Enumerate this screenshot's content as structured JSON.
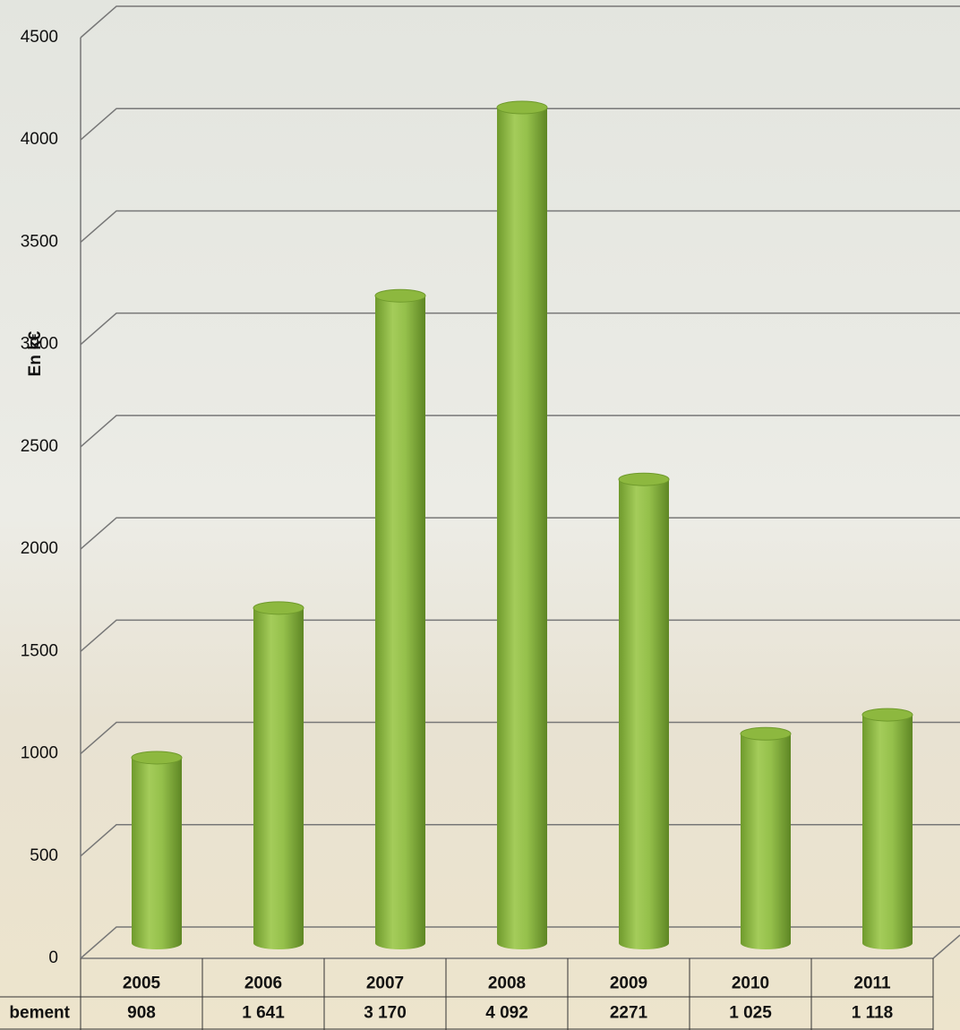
{
  "chart_data": {
    "type": "bar",
    "y_label": "En k€",
    "categories": [
      "2005",
      "2006",
      "2007",
      "2008",
      "2009",
      "2010",
      "2011"
    ],
    "series": [
      {
        "name": "bement",
        "color": "#8db83f",
        "values": [
          908,
          1641,
          3170,
          4092,
          2271,
          1025,
          1118
        ],
        "value_labels": [
          "908",
          "1 641",
          "3 170",
          "4 092",
          "2271",
          "1 025",
          "1 118"
        ]
      }
    ],
    "ylim": [
      0,
      4500
    ],
    "yticks": [
      0,
      500,
      1000,
      1500,
      2000,
      2500,
      3000,
      3500,
      4000,
      4500
    ],
    "grid": true
  }
}
